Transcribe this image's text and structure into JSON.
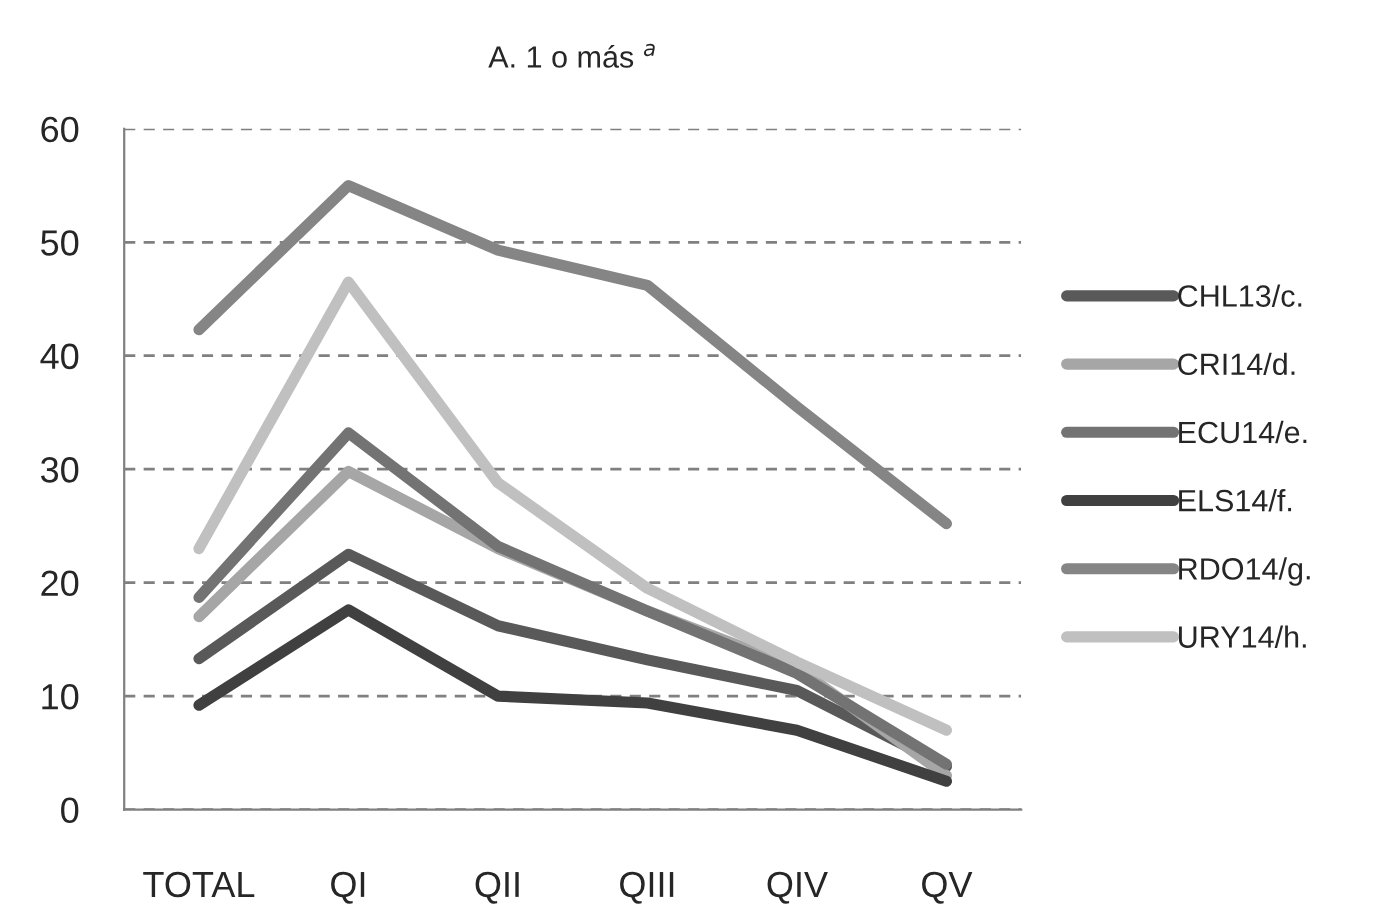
{
  "chart_data": {
    "type": "line",
    "title": "A. 1 o más $^{a}$",
    "categories": [
      "TOTAL",
      "QI",
      "QII",
      "QIII",
      "QIV",
      "QV"
    ],
    "series": [
      {
        "name": "CHL13/c.",
        "color": "#595959",
        "values": [
          13.3,
          22.5,
          16.2,
          13.2,
          10.5,
          3.8
        ]
      },
      {
        "name": "CRI14/d.",
        "color": "#a6a6a6",
        "values": [
          17,
          29.8,
          23,
          17.5,
          12.5,
          3
        ]
      },
      {
        "name": "ECU14/e.",
        "color": "#737373",
        "values": [
          18.7,
          33.2,
          23.2,
          17.5,
          12,
          4
        ]
      },
      {
        "name": "ELS14/f.",
        "color": "#404040",
        "values": [
          9.2,
          17.6,
          10,
          9.4,
          7,
          2.5
        ]
      },
      {
        "name": "RDO14/g.",
        "color": "#858585",
        "values": [
          42.3,
          55,
          49.3,
          46.2,
          35.5,
          25.2
        ]
      },
      {
        "name": "URY14/h.",
        "color": "#c0c0c0",
        "values": [
          23,
          46.5,
          28.8,
          19.5,
          13,
          7
        ]
      }
    ],
    "ylim": [
      0,
      60
    ],
    "yticks": [
      0,
      10,
      20,
      30,
      40,
      50,
      60
    ],
    "grid": "y",
    "legend": "right",
    "marker": "none",
    "line_style": "solid"
  }
}
